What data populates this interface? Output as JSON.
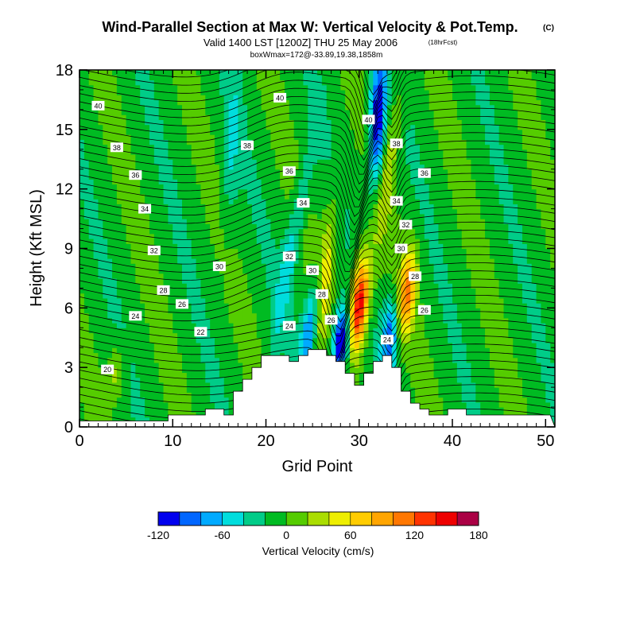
{
  "chart_data": {
    "type": "heatmap",
    "title": "Wind-Parallel Section at Max W: Vertical Velocity & Pot.Temp.",
    "title_unit": "(C)",
    "subtitle": "Valid 1400 LST [1200Z] THU 25 May 2006",
    "forecast_hour": "(18hrFcst)",
    "subtitle2": "boxWmax=172@-33.89,19.38,1858m",
    "xlabel": "Grid Point",
    "ylabel": "Height (Kft MSL)",
    "xlim": [
      0,
      51
    ],
    "ylim": [
      0,
      18
    ],
    "xticks": [
      "0",
      "10",
      "20",
      "30",
      "40",
      "50"
    ],
    "yticks": [
      "0",
      "3",
      "6",
      "9",
      "12",
      "15",
      "18"
    ],
    "colorbar": {
      "label": "Vertical Velocity (cm/s)",
      "tick_labels": [
        "-120",
        "-60",
        "0",
        "60",
        "120",
        "180"
      ],
      "levels": [
        -120,
        -100,
        -80,
        -60,
        -40,
        -20,
        0,
        20,
        40,
        60,
        80,
        100,
        120,
        140,
        160,
        180
      ],
      "colors": [
        "#0000ee",
        "#0066ff",
        "#00aaff",
        "#00dddd",
        "#00cc88",
        "#00bb22",
        "#55cc00",
        "#aadd00",
        "#eeee00",
        "#ffcc00",
        "#ffa500",
        "#ff7700",
        "#ff3300",
        "#ee0000",
        "#aa0044"
      ]
    },
    "contour_field": "Potential Temperature (C)",
    "contour_labels": [
      {
        "text": "40",
        "x": 2,
        "y": 16.2
      },
      {
        "text": "38",
        "x": 4,
        "y": 14.1
      },
      {
        "text": "36",
        "x": 6,
        "y": 12.7
      },
      {
        "text": "34",
        "x": 7,
        "y": 11.0
      },
      {
        "text": "32",
        "x": 8,
        "y": 8.9
      },
      {
        "text": "30",
        "x": 15,
        "y": 8.1
      },
      {
        "text": "28",
        "x": 9,
        "y": 6.9
      },
      {
        "text": "26",
        "x": 11,
        "y": 6.2
      },
      {
        "text": "24",
        "x": 6,
        "y": 5.6
      },
      {
        "text": "22",
        "x": 13,
        "y": 4.8
      },
      {
        "text": "20",
        "x": 3,
        "y": 2.9
      },
      {
        "text": "40",
        "x": 21.5,
        "y": 16.6
      },
      {
        "text": "38",
        "x": 18,
        "y": 14.2
      },
      {
        "text": "36",
        "x": 22.5,
        "y": 12.9
      },
      {
        "text": "34",
        "x": 24,
        "y": 11.3
      },
      {
        "text": "32",
        "x": 22.5,
        "y": 8.6
      },
      {
        "text": "30",
        "x": 25,
        "y": 7.9
      },
      {
        "text": "28",
        "x": 26,
        "y": 6.7
      },
      {
        "text": "26",
        "x": 27,
        "y": 5.4
      },
      {
        "text": "24",
        "x": 22.5,
        "y": 5.1
      },
      {
        "text": "40",
        "x": 31,
        "y": 15.5
      },
      {
        "text": "38",
        "x": 34,
        "y": 14.3
      },
      {
        "text": "36",
        "x": 37,
        "y": 12.8
      },
      {
        "text": "34",
        "x": 34,
        "y": 11.4
      },
      {
        "text": "32",
        "x": 35,
        "y": 10.2
      },
      {
        "text": "30",
        "x": 34.5,
        "y": 9.0
      },
      {
        "text": "28",
        "x": 36,
        "y": 7.6
      },
      {
        "text": "26",
        "x": 37,
        "y": 5.9
      },
      {
        "text": "24",
        "x": 33,
        "y": 4.4
      }
    ],
    "terrain_heights_kft": [
      0.3,
      0.3,
      0.3,
      0.3,
      0.3,
      0.3,
      0.3,
      0.3,
      0.3,
      0.3,
      0.6,
      0.6,
      0.6,
      0.6,
      0.9,
      0.9,
      0.6,
      1.8,
      2.4,
      3.0,
      3.6,
      3.6,
      3.6,
      3.3,
      3.6,
      3.9,
      3.9,
      3.6,
      3.3,
      2.7,
      2.1,
      2.7,
      3.3,
      3.6,
      3.0,
      1.8,
      1.2,
      0.9,
      0.6,
      0.6,
      0.9,
      0.9,
      0.6,
      0.6,
      0.6,
      0.6,
      0.6,
      0.6,
      0.6,
      0.6,
      0.6
    ],
    "wmax_cm_s": 172
  }
}
